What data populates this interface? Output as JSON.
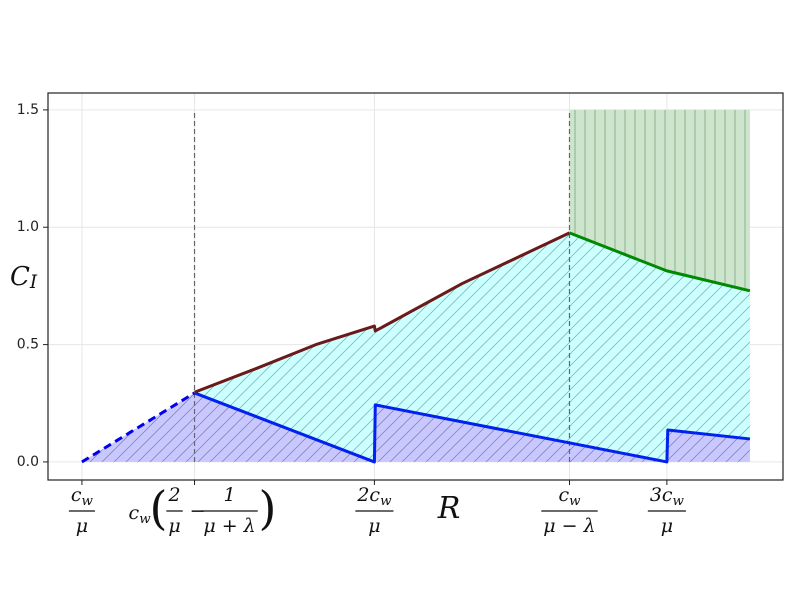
{
  "chart_data": {
    "type": "line",
    "xlabel": "R",
    "ylabel": {
      "base": "C",
      "sub": "I"
    },
    "xlim": [
      0.884,
      3.397
    ],
    "ylim": [
      -0.077,
      1.572
    ],
    "yticks": [
      {
        "value": 0,
        "label": "0.0"
      },
      {
        "value": 0.5,
        "label": "0.5"
      },
      {
        "value": 1,
        "label": "1.0"
      },
      {
        "value": 1.5,
        "label": "1.5"
      }
    ],
    "xticks": [
      {
        "value": 1,
        "label": {
          "num": {
            "base": "c",
            "sub": "w"
          },
          "den": "μ"
        }
      },
      {
        "value": 1.385,
        "label": {
          "prefix": {
            "base": "c",
            "sub": "w"
          },
          "terms": [
            {
              "num": "2",
              "den": "μ"
            },
            {
              "num": "1",
              "den": "μ + λ"
            }
          ],
          "operator": "−"
        }
      },
      {
        "value": 2,
        "label": {
          "num": {
            "base": "2c",
            "sub": "w"
          },
          "den": "μ"
        }
      },
      {
        "value": 2.667,
        "label": {
          "num": {
            "base": "c",
            "sub": "w"
          },
          "den": "μ − λ"
        }
      },
      {
        "value": 3,
        "label": {
          "num": {
            "base": "3c",
            "sub": "w"
          },
          "den": "μ"
        }
      }
    ],
    "grid": true,
    "areas": [
      {
        "color": "#c8c8ff",
        "hatch": "diagonal",
        "hatch_color": "#444477",
        "x": [
          1,
          1.385,
          2,
          2.003,
          3,
          3.003,
          3.284
        ],
        "lower": [
          0,
          0,
          0,
          0,
          0,
          0,
          0
        ],
        "upper": [
          0,
          0.294,
          0,
          0.243,
          0,
          0.136,
          0.098
        ]
      },
      {
        "color": "#ccffff",
        "hatch": "diagonal",
        "hatch_color": "#2a7a7a",
        "x": [
          1.385,
          1.6,
          1.8,
          2,
          2.003,
          2.3,
          2.667,
          3,
          3.003,
          3.284
        ],
        "lower": [
          0.294,
          0.191,
          0.096,
          0,
          0.243,
          0.171,
          0.081,
          0,
          0.136,
          0.098
        ],
        "upper": [
          0.297,
          0.4,
          0.5,
          0.579,
          0.558,
          0.76,
          0.976,
          0.814,
          0.813,
          0.729
        ]
      },
      {
        "color": "#cce5cc",
        "hatch": "vertical",
        "hatch_color": "#336633",
        "x": [
          2.667,
          3,
          3.284
        ],
        "lower": [
          0.976,
          0.814,
          0.729
        ],
        "upper": [
          1.5,
          1.5,
          1.5
        ]
      }
    ],
    "vlines": [
      {
        "x": 1.385,
        "color": "#666666"
      },
      {
        "x": 2.667,
        "color": "#666666"
      }
    ],
    "series": [
      {
        "color": "#0000ee",
        "dash": true,
        "x": [
          1,
          1.385
        ],
        "values": [
          0,
          0.294
        ]
      },
      {
        "color": "#0022ee",
        "dash": false,
        "x": [
          1.385,
          2,
          2.003,
          3,
          3.003,
          3.284
        ],
        "values": [
          0.294,
          0,
          0.243,
          0,
          0.136,
          0.098
        ]
      },
      {
        "color": "#6b1a1a",
        "dash": false,
        "x": [
          1.385,
          1.6,
          1.8,
          2,
          2.003,
          2.3,
          2.667
        ],
        "values": [
          0.297,
          0.4,
          0.5,
          0.579,
          0.558,
          0.76,
          0.976
        ]
      },
      {
        "color": "#008a00",
        "dash": false,
        "x": [
          2.667,
          3,
          3.284
        ],
        "values": [
          0.976,
          0.814,
          0.729
        ]
      }
    ]
  }
}
